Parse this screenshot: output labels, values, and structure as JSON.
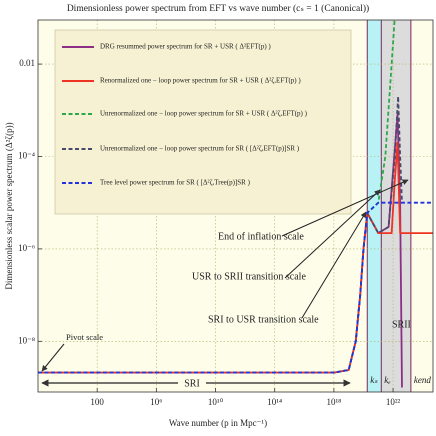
{
  "chart_data": {
    "type": "line",
    "title": "Dimensionless power spectrum from EFT vs wave number (cₛ = 1 (Canonical))",
    "x_label": "Wave number (p in Mpc⁻¹)",
    "y_label": "Dimensionless scalar power spectrum (Δ²ζ(p))",
    "log_x": true,
    "log_y": true,
    "grid": true,
    "xlim": [
      0.01,
      5e+24
    ],
    "ylim": [
      8e-10,
      0.09
    ],
    "xticks": [
      100,
      {
        "value": 1000000.0,
        "label": "10⁶"
      },
      {
        "value": 10000000000.0,
        "label": "10¹⁰"
      },
      {
        "value": 100000000000000.0,
        "label": "10¹⁴"
      },
      {
        "value": 1e+18,
        "label": "10¹⁸"
      },
      {
        "value": 1e+22,
        "label": "10²²"
      }
    ],
    "yticks": [
      {
        "value": 1e-08,
        "label": "10⁻⁸"
      },
      {
        "value": 1e-06,
        "label": "10⁻⁶"
      },
      {
        "value": 0.0001,
        "label": "10⁻⁴"
      },
      0.01
    ],
    "markers": [
      {
        "x": 1.8e+20,
        "label": "kₛ"
      },
      {
        "x": 1.6e+21,
        "label": "kₑ"
      },
      {
        "x": 1.6e+23,
        "label": "kend"
      }
    ],
    "series": [
      {
        "name": "DRG resummed power spectrum for SR + USR ( Δ²EFT(p) )",
        "color": "#8b2f86",
        "style": "solid",
        "x": [
          0.01,
          1e+18,
          1e+19,
          3e+19,
          6e+19,
          1e+20,
          1.8e+20,
          1e+21,
          5e+21,
          1.2e+22,
          2e+22,
          3e+22,
          4e+22
        ],
        "values": [
          2.1e-09,
          2.1e-09,
          2.4e-09,
          1e-08,
          1e-07,
          1e-06,
          6e-06,
          2.2e-06,
          3e-06,
          0.0001,
          0.0008,
          1e-05,
          1e-09
        ]
      },
      {
        "name": "Renormalized one − loop power spectrum for SR + USR ( Δ²ζ,EFT(p) )",
        "color": "#ee3322",
        "style": "solid",
        "x": [
          0.01,
          1e+18,
          1e+19,
          3e+19,
          6e+19,
          1e+20,
          1.8e+20,
          1e+21,
          8e+21,
          1.3e+22,
          2e+22,
          3e+22,
          5e+24
        ],
        "values": [
          2.1e-09,
          2.1e-09,
          2.4e-09,
          1e-08,
          1e-07,
          1e-06,
          6e-06,
          2.2e-06,
          2.2e-06,
          3e-05,
          0.0002,
          2.2e-06,
          2.2e-06
        ]
      },
      {
        "name": "Unrenormalized one − loop power spectrum for SR + USR ( Δ²ζ,EFT(p) )",
        "color": "#2aa84a",
        "style": "dashed",
        "x": [
          0.01,
          1e+18,
          1e+19,
          3e+19,
          6e+19,
          1e+20,
          1.8e+20,
          1e+21,
          3e+21,
          8e+21,
          1.3e+22
        ],
        "values": [
          2.1e-09,
          2.1e-09,
          2.4e-09,
          1e-08,
          1e-07,
          1e-06,
          6e-06,
          1e-05,
          0.0001,
          0.01,
          0.1
        ]
      },
      {
        "name": "Unrenormalized one − loop power spectrum for SR ( [Δ²ζ,EFT(p)]SR )",
        "color": "#4a4a6a",
        "style": "dashed",
        "x": [
          0.01,
          1e+18,
          1e+19,
          3e+19,
          6e+19,
          1e+20,
          1.8e+20,
          1e+21,
          5e+21,
          1.3e+22,
          2.2e+22,
          3e+22,
          4e+22
        ],
        "values": [
          2.1e-09,
          2.1e-09,
          2.4e-09,
          1e-08,
          1e-07,
          1e-06,
          6e-06,
          2.2e-06,
          3e-06,
          0.0001,
          0.002,
          0.0001,
          1e-05
        ]
      },
      {
        "name": "Tree level power spectrum for SR ( [Δ²ζ,Tree(p)]SR )",
        "color": "#2233dd",
        "style": "dashed",
        "x": [
          0.01,
          1e+18,
          1e+19,
          3e+19,
          6e+19,
          1e+20,
          1.8e+20,
          1e+21,
          5e+24
        ],
        "values": [
          2.1e-09,
          2.1e-09,
          2.4e-09,
          1e-08,
          1e-07,
          1e-06,
          6e-06,
          1e-05,
          1e-05
        ]
      }
    ],
    "annotations": [
      "Pivot scale",
      "SRI",
      "SRII",
      "End of inflation scale",
      "USR to SRII transition scale",
      "SRI to USR transition scale"
    ]
  }
}
